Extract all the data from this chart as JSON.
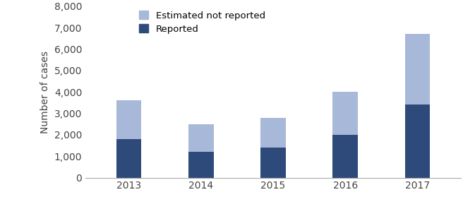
{
  "years": [
    "2013",
    "2014",
    "2015",
    "2016",
    "2017"
  ],
  "reported": [
    1800,
    1200,
    1400,
    2000,
    3400
  ],
  "estimated_not_reported": [
    1800,
    1300,
    1400,
    2000,
    3300
  ],
  "color_reported": "#2E4A7A",
  "color_estimated": "#A8B8D8",
  "ylabel": "Number of cases",
  "ylim": [
    0,
    8000
  ],
  "yticks": [
    0,
    1000,
    2000,
    3000,
    4000,
    5000,
    6000,
    7000,
    8000
  ],
  "legend_estimated": "Estimated not reported",
  "legend_reported": "Reported",
  "bar_width": 0.35
}
